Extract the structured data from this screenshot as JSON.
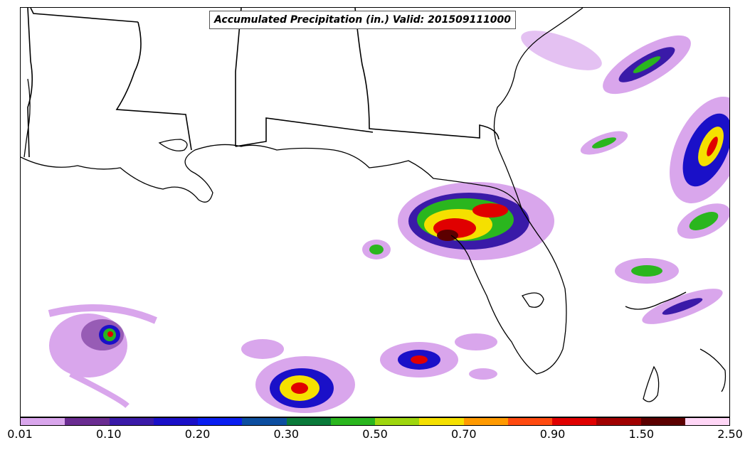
{
  "title": "Accumulated Precipitation (in.) Valid: 201509111000",
  "colorbar": {
    "colors": [
      "#d9a6ec",
      "#6a2c91",
      "#3a1aa8",
      "#1a10c8",
      "#0a1ef0",
      "#0c4ea0",
      "#0a7a3a",
      "#2ab61e",
      "#9ed60e",
      "#f5e000",
      "#ff9a00",
      "#ff4a10",
      "#e00000",
      "#a00000",
      "#5c0000",
      "#ffd6f6"
    ],
    "labels": [
      "0.01",
      "0.10",
      "0.20",
      "0.30",
      "0.50",
      "0.70",
      "0.90",
      "1.50",
      "2.50"
    ]
  }
}
